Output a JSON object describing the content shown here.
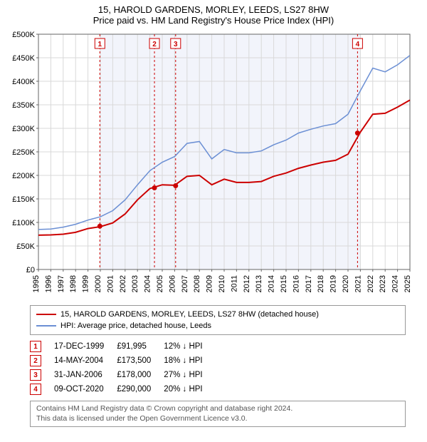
{
  "title": "15, HAROLD GARDENS, MORLEY, LEEDS, LS27 8HW",
  "subtitle": "Price paid vs. HM Land Registry's House Price Index (HPI)",
  "chart": {
    "type": "line",
    "x_years": [
      1995,
      1996,
      1997,
      1998,
      1999,
      2000,
      2001,
      2002,
      2003,
      2004,
      2005,
      2006,
      2007,
      2008,
      2009,
      2010,
      2011,
      2012,
      2013,
      2014,
      2015,
      2016,
      2017,
      2018,
      2019,
      2020,
      2021,
      2022,
      2023,
      2024,
      2025
    ],
    "ylim": [
      0,
      500000
    ],
    "ytick_step": 50000,
    "ytick_labels": [
      "£0",
      "£50K",
      "£100K",
      "£150K",
      "£200K",
      "£250K",
      "£300K",
      "£350K",
      "£400K",
      "£450K",
      "£500K"
    ],
    "background_color": "#ffffff",
    "plot_grid_color": "#d9d9d9",
    "axis_color": "#666666",
    "shaded_band": {
      "x_from": 2000,
      "x_to": 2021,
      "fill": "#f2f4fb"
    },
    "series": [
      {
        "name": "property",
        "label": "15, HAROLD GARDENS, MORLEY, LEEDS, LS27 8HW (detached house)",
        "color": "#cc0000",
        "width": 2,
        "y": [
          73000,
          73500,
          75000,
          79000,
          87000,
          91000,
          99000,
          118000,
          148000,
          172000,
          180000,
          179000,
          198000,
          200000,
          180000,
          192000,
          185000,
          185000,
          187000,
          198000,
          205000,
          215000,
          222000,
          228000,
          232000,
          245000,
          292000,
          330000,
          332000,
          345000,
          360000
        ]
      },
      {
        "name": "hpi",
        "label": "HPI: Average price, detached house, Leeds",
        "color": "#6b8fd4",
        "width": 1.5,
        "y": [
          85000,
          86000,
          90000,
          96000,
          105000,
          112000,
          125000,
          148000,
          180000,
          210000,
          228000,
          240000,
          268000,
          272000,
          235000,
          255000,
          248000,
          248000,
          252000,
          265000,
          275000,
          290000,
          298000,
          305000,
          310000,
          330000,
          380000,
          428000,
          420000,
          435000,
          455000
        ]
      }
    ],
    "sale_markers": [
      {
        "n": 1,
        "x": 1999.96,
        "y": 91995
      },
      {
        "n": 2,
        "x": 2004.37,
        "y": 173500
      },
      {
        "n": 3,
        "x": 2006.08,
        "y": 178000
      },
      {
        "n": 4,
        "x": 2020.77,
        "y": 290000
      }
    ],
    "marker_line_color": "#cc0000",
    "marker_line_dash": "3,3",
    "axis_label_fontsize": 11
  },
  "legend": {
    "rows": [
      {
        "color": "#cc0000",
        "label_key": "chart.series.0.label"
      },
      {
        "color": "#6b8fd4",
        "label_key": "chart.series.1.label"
      }
    ]
  },
  "sales": [
    {
      "n": "1",
      "date": "17-DEC-1999",
      "price": "£91,995",
      "pct": "12% ↓ HPI"
    },
    {
      "n": "2",
      "date": "14-MAY-2004",
      "price": "£173,500",
      "pct": "18% ↓ HPI"
    },
    {
      "n": "3",
      "date": "31-JAN-2006",
      "price": "£178,000",
      "pct": "27% ↓ HPI"
    },
    {
      "n": "4",
      "date": "09-OCT-2020",
      "price": "£290,000",
      "pct": "20% ↓ HPI"
    }
  ],
  "footer": {
    "line1": "Contains HM Land Registry data © Crown copyright and database right 2024.",
    "line2": "This data is licensed under the Open Government Licence v3.0."
  }
}
